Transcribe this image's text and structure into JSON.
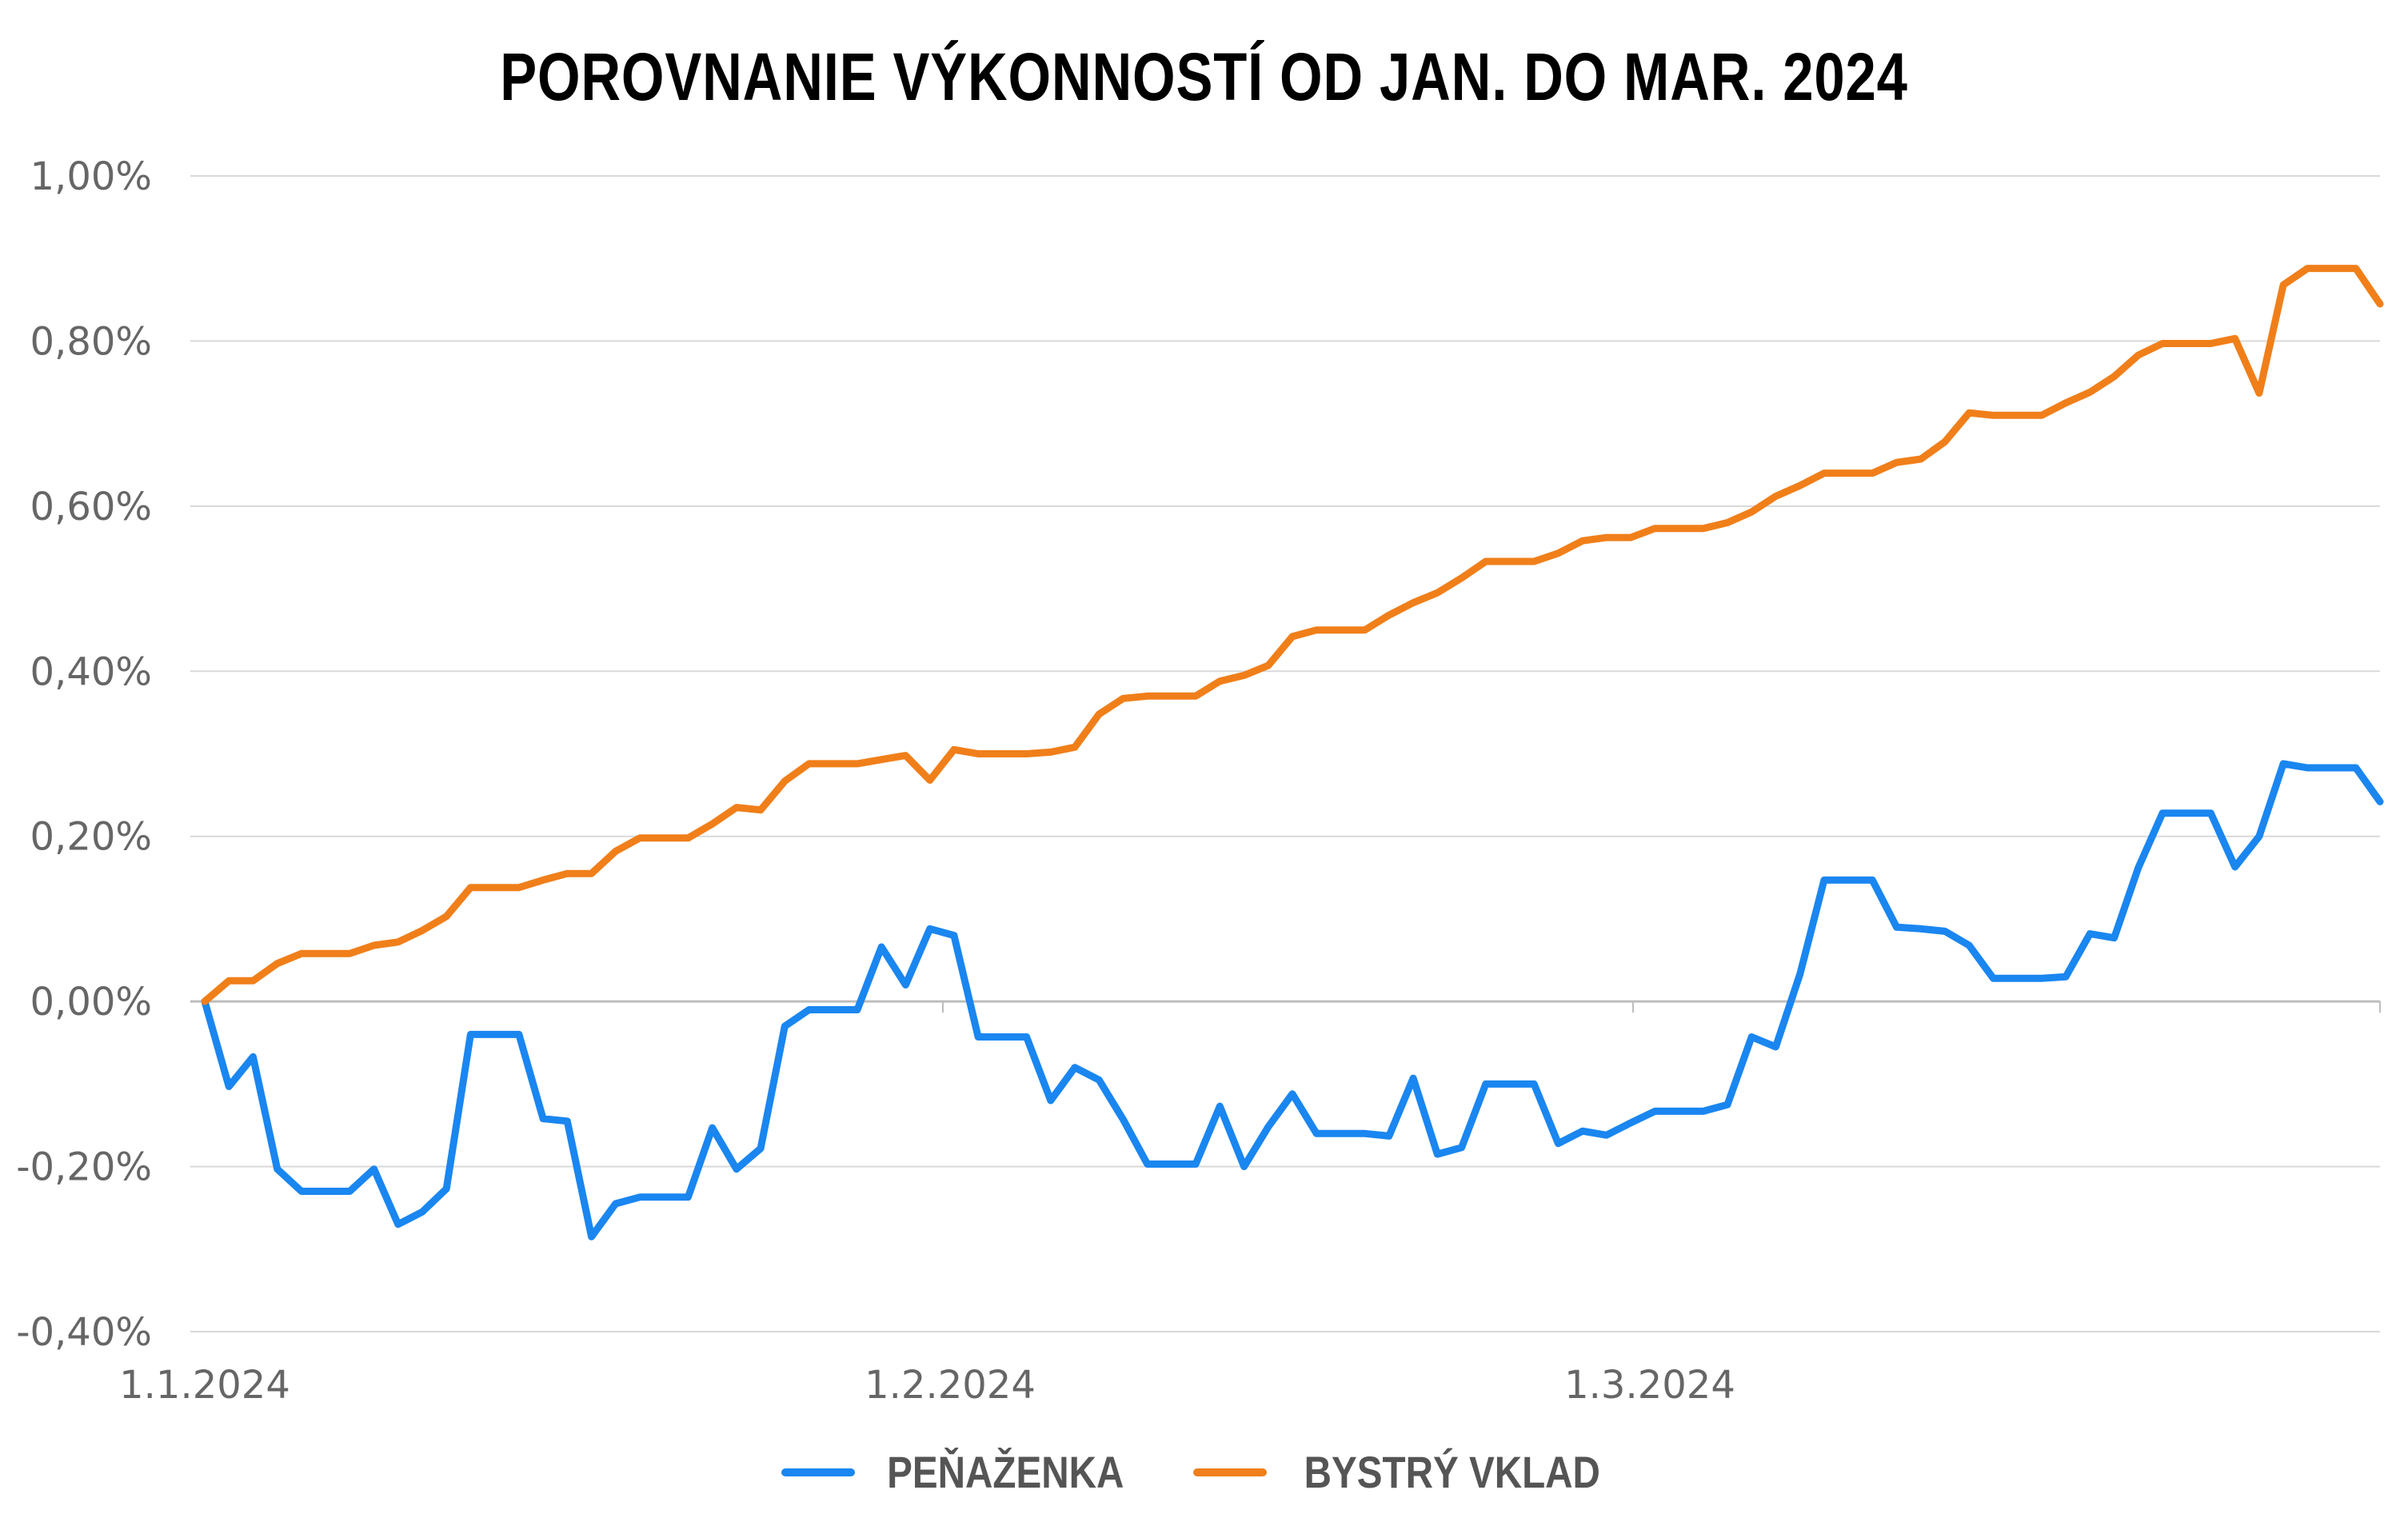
{
  "chart_data": {
    "type": "line",
    "title": "POROVNANIE VÝKONNOSTÍ OD JAN. DO MAR. 2024",
    "xlabel": "",
    "ylabel": "",
    "x_tick_labels": [
      "1.1.2024",
      "1.2.2024",
      "1.3.2024"
    ],
    "y_tick_labels": [
      "1,00%",
      "0,80%",
      "0,60%",
      "0,40%",
      "0,20%",
      "0,00%",
      "-0,20%",
      "-0,40%"
    ],
    "y_ticks": [
      1.0,
      0.8,
      0.6,
      0.4,
      0.2,
      0.0,
      -0.2,
      -0.4
    ],
    "ylim": [
      -0.4,
      1.0
    ],
    "grid": "horizontal",
    "legend_position": "bottom-center",
    "series": [
      {
        "name": "PEŇAŽENKA",
        "color": "#1A86F0",
        "values": [
          0.0,
          -0.103,
          -0.067,
          -0.203,
          -0.23,
          -0.23,
          -0.23,
          -0.203,
          -0.27,
          -0.255,
          -0.227,
          -0.04,
          -0.04,
          -0.04,
          -0.142,
          -0.145,
          -0.285,
          -0.245,
          -0.237,
          -0.237,
          -0.237,
          -0.153,
          -0.203,
          -0.178,
          -0.03,
          -0.01,
          -0.01,
          -0.01,
          0.066,
          0.02,
          0.088,
          0.08,
          -0.043,
          -0.043,
          -0.043,
          -0.12,
          -0.08,
          -0.095,
          -0.143,
          -0.197,
          -0.197,
          -0.197,
          -0.127,
          -0.2,
          -0.152,
          -0.112,
          -0.16,
          -0.16,
          -0.16,
          -0.163,
          -0.093,
          -0.185,
          -0.177,
          -0.1,
          -0.1,
          -0.1,
          -0.172,
          -0.157,
          -0.162,
          -0.147,
          -0.133,
          -0.133,
          -0.133,
          -0.125,
          -0.043,
          -0.055,
          0.033,
          0.147,
          0.147,
          0.147,
          0.09,
          0.088,
          0.085,
          0.068,
          0.028,
          0.028,
          0.028,
          0.03,
          0.082,
          0.077,
          0.162,
          0.228,
          0.228,
          0.228,
          0.163,
          0.2,
          0.288,
          0.283,
          0.283,
          0.283,
          0.242
        ]
      },
      {
        "name": "BYSTRÝ VKLAD",
        "color": "#F07F1A",
        "values": [
          0.0,
          0.025,
          0.025,
          0.046,
          0.058,
          0.058,
          0.058,
          0.068,
          0.072,
          0.086,
          0.103,
          0.138,
          0.138,
          0.138,
          0.147,
          0.155,
          0.155,
          0.182,
          0.198,
          0.198,
          0.198,
          0.215,
          0.235,
          0.232,
          0.267,
          0.288,
          0.288,
          0.288,
          0.293,
          0.298,
          0.268,
          0.305,
          0.3,
          0.3,
          0.3,
          0.302,
          0.308,
          0.348,
          0.367,
          0.37,
          0.37,
          0.37,
          0.388,
          0.395,
          0.407,
          0.442,
          0.45,
          0.45,
          0.45,
          0.468,
          0.483,
          0.495,
          0.513,
          0.533,
          0.533,
          0.533,
          0.543,
          0.558,
          0.562,
          0.562,
          0.573,
          0.573,
          0.573,
          0.58,
          0.593,
          0.612,
          0.625,
          0.64,
          0.64,
          0.64,
          0.653,
          0.657,
          0.678,
          0.713,
          0.71,
          0.71,
          0.71,
          0.725,
          0.738,
          0.757,
          0.783,
          0.797,
          0.797,
          0.797,
          0.803,
          0.737,
          0.868,
          0.888,
          0.888,
          0.888,
          0.845
        ]
      }
    ]
  }
}
